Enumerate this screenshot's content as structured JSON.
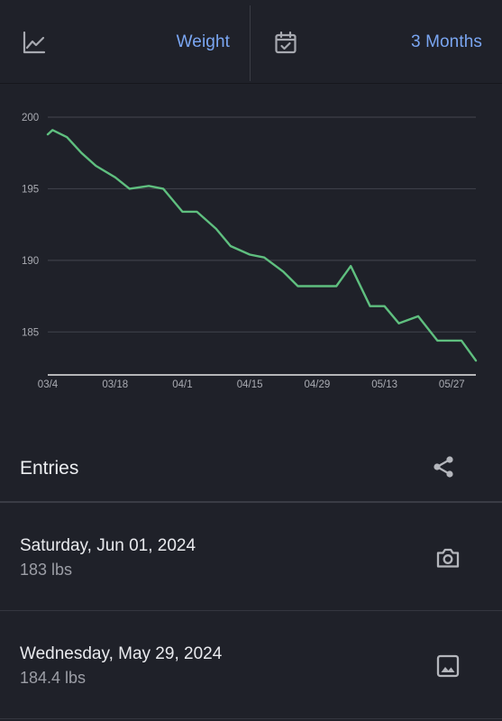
{
  "top_bar": {
    "metric_label": "Weight",
    "range_label": "3 Months",
    "metric_icon": "line-chart-icon",
    "range_icon": "calendar-check-icon"
  },
  "chart_data": {
    "type": "line",
    "title": "",
    "xlabel": "",
    "ylabel": "",
    "ylim": [
      182,
      200
    ],
    "yticks": [
      200,
      195,
      190,
      185
    ],
    "x_tick_labels": [
      "03/4",
      "03/18",
      "04/1",
      "04/15",
      "04/29",
      "05/13",
      "05/27"
    ],
    "x_range": [
      "2024-03-04",
      "2024-06-01"
    ],
    "grid": true,
    "line_color": "#5fbf7f",
    "series": [
      {
        "x": [
          "2024-03-04",
          "2024-03-05",
          "2024-03-08",
          "2024-03-11",
          "2024-03-14",
          "2024-03-18",
          "2024-03-21",
          "2024-03-25",
          "2024-03-28",
          "2024-04-01",
          "2024-04-04",
          "2024-04-08",
          "2024-04-11",
          "2024-04-15",
          "2024-04-18",
          "2024-04-22",
          "2024-04-25",
          "2024-04-29",
          "2024-05-03",
          "2024-05-06",
          "2024-05-10",
          "2024-05-13",
          "2024-05-16",
          "2024-05-20",
          "2024-05-24",
          "2024-05-27",
          "2024-05-29",
          "2024-06-01"
        ],
        "y": [
          198.8,
          199.1,
          198.6,
          197.5,
          196.6,
          195.8,
          195.0,
          195.2,
          195.0,
          193.4,
          193.4,
          192.2,
          191.0,
          190.4,
          190.2,
          189.2,
          188.2,
          188.2,
          188.2,
          189.6,
          186.8,
          186.8,
          185.6,
          186.1,
          184.4,
          184.4,
          184.4,
          183.0
        ]
      }
    ]
  },
  "entries": {
    "title": "Entries",
    "share_icon": "share-icon",
    "items": [
      {
        "date": "Saturday, Jun 01, 2024",
        "weight": "183 lbs",
        "icon": "camera-icon"
      },
      {
        "date": "Wednesday, May 29, 2024",
        "weight": "184.4 lbs",
        "icon": "image-icon"
      }
    ]
  },
  "colors": {
    "background": "#1f2129",
    "accent": "#7aa6f2",
    "line": "#5fbf7f",
    "grid": "#3d3f48",
    "axis": "#e8e8e8",
    "icon": "#b4b6bc"
  }
}
